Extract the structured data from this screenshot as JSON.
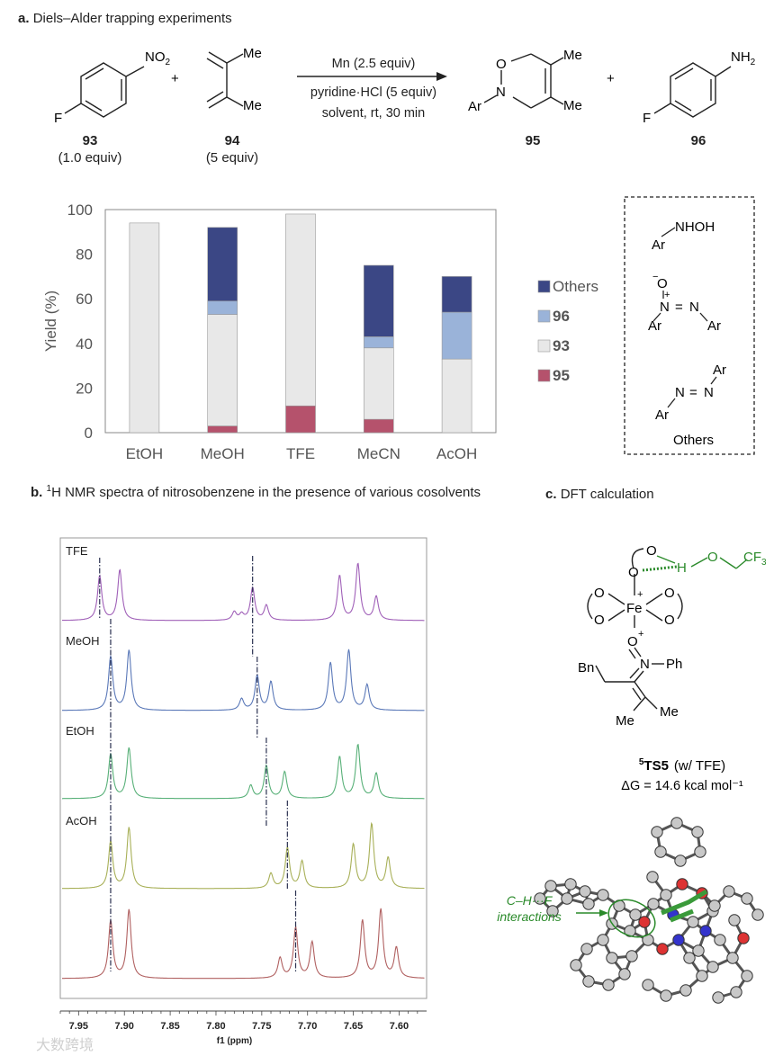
{
  "section_a": {
    "letter": "a.",
    "title": "Diels–Alder trapping experiments",
    "cmpd93": {
      "id": "93",
      "equiv": "(1.0 equiv)",
      "sub_F": "F",
      "sub_NO2": "NO2"
    },
    "cmpd94": {
      "id": "94",
      "equiv": "(5 equiv)",
      "me1": "Me",
      "me2": "Me"
    },
    "plus1": "+",
    "plus2": "+",
    "conditions": {
      "line1": "Mn (2.5 equiv)",
      "line2": "pyridine·HCl (5 equiv)",
      "line3": "solvent, rt, 30 min"
    },
    "cmpd95": {
      "id": "95",
      "o": "O",
      "n": "N",
      "ar": "Ar",
      "me1": "Me",
      "me2": "Me"
    },
    "cmpd96": {
      "id": "96",
      "sub_F": "F",
      "sub_NH2": "NH2"
    }
  },
  "others_box": {
    "nhoh": "NHOH",
    "ar": "Ar",
    "oxide_o": "O",
    "minus": "−",
    "plus": "+",
    "n": "N",
    "eq": "=",
    "caption": "Others"
  },
  "chart_data": [
    {
      "type": "bar",
      "stacked": true,
      "title": "",
      "xlabel": "",
      "ylabel": "Yield (%)",
      "ylim": [
        0,
        100
      ],
      "yticks": [
        0,
        20,
        40,
        60,
        80,
        100
      ],
      "categories": [
        "EtOH",
        "MeOH",
        "TFE",
        "MeCN",
        "AcOH"
      ],
      "series": [
        {
          "name": "95",
          "color": "#b5526c",
          "values": [
            0,
            3,
            12,
            6,
            0
          ]
        },
        {
          "name": "93",
          "color": "#e8e8e8",
          "values": [
            94,
            50,
            86,
            32,
            33
          ]
        },
        {
          "name": "96",
          "color": "#9ab3d9",
          "values": [
            0,
            6,
            0,
            5,
            21
          ]
        },
        {
          "name": "Others",
          "color": "#3b4785",
          "values": [
            0,
            33,
            0,
            32,
            16
          ]
        }
      ],
      "legend": [
        "Others",
        "96",
        "93",
        "95"
      ],
      "legend_position": "right"
    },
    {
      "type": "line",
      "title": "¹H NMR spectra of nitrosobenzene in the presence of various cosolvents",
      "xlabel": "f1 (ppm)",
      "xlim": [
        7.97,
        7.57
      ],
      "xticks": [
        7.95,
        7.9,
        7.85,
        7.8,
        7.75,
        7.7,
        7.65,
        7.6
      ],
      "tick_labels": [
        "7.95",
        "7.90",
        "7.85",
        "7.80",
        "7.75",
        "7.70",
        "7.65",
        "7.60"
      ],
      "series": [
        {
          "name": "TFE",
          "color": "#a060b8",
          "peaks": [
            [
              7.927,
              0.75
            ],
            [
              7.905,
              0.85
            ],
            [
              7.78,
              0.14
            ],
            [
              7.772,
              0.1
            ],
            [
              7.76,
              0.55
            ],
            [
              7.745,
              0.25
            ],
            [
              7.665,
              0.75
            ],
            [
              7.645,
              0.95
            ],
            [
              7.625,
              0.4
            ]
          ]
        },
        {
          "name": "MeOH",
          "color": "#5a78b8",
          "peaks": [
            [
              7.915,
              0.85
            ],
            [
              7.895,
              0.95
            ],
            [
              7.772,
              0.18
            ],
            [
              7.755,
              0.55
            ],
            [
              7.74,
              0.45
            ],
            [
              7.675,
              0.75
            ],
            [
              7.655,
              0.95
            ],
            [
              7.635,
              0.4
            ]
          ]
        },
        {
          "name": "EtOH",
          "color": "#58b078",
          "peaks": [
            [
              7.915,
              0.75
            ],
            [
              7.895,
              0.85
            ],
            [
              7.762,
              0.22
            ],
            [
              7.745,
              0.55
            ],
            [
              7.725,
              0.45
            ],
            [
              7.665,
              0.7
            ],
            [
              7.645,
              0.9
            ],
            [
              7.625,
              0.42
            ]
          ]
        },
        {
          "name": "AcOH",
          "color": "#a8b058",
          "peaks": [
            [
              7.915,
              0.7
            ],
            [
              7.895,
              0.9
            ],
            [
              7.74,
              0.22
            ],
            [
              7.722,
              0.6
            ],
            [
              7.706,
              0.4
            ],
            [
              7.65,
              0.65
            ],
            [
              7.63,
              0.95
            ],
            [
              7.612,
              0.45
            ]
          ]
        },
        {
          "name": "",
          "color": "#b06060",
          "peaks": [
            [
              7.915,
              0.8
            ],
            [
              7.895,
              0.95
            ],
            [
              7.73,
              0.28
            ],
            [
              7.713,
              0.7
            ],
            [
              7.695,
              0.5
            ],
            [
              7.64,
              0.8
            ],
            [
              7.62,
              0.95
            ],
            [
              7.603,
              0.42
            ]
          ]
        }
      ]
    }
  ],
  "section_b": {
    "letter": "b.",
    "title_pre": "H NMR spectra of nitrosobenzene in the presence of various cosolvents",
    "sup": "1"
  },
  "section_c": {
    "letter": "c.",
    "title": "DFT calculation",
    "fe": "Fe",
    "plus": "+",
    "o": "O",
    "h": "H",
    "cf3": "CF3",
    "n": "N",
    "ph": "Ph",
    "bn": "Bn",
    "me1": "Me",
    "me2": "Me",
    "ts_sup": "5",
    "ts_label": "TS5",
    "ts_note": "(w/ TFE)",
    "energy": "ΔG = 14.6 kcal mol⁻¹",
    "annotation1": "C–H···F",
    "annotation2": "interactions"
  },
  "watermark": "大数跨境"
}
